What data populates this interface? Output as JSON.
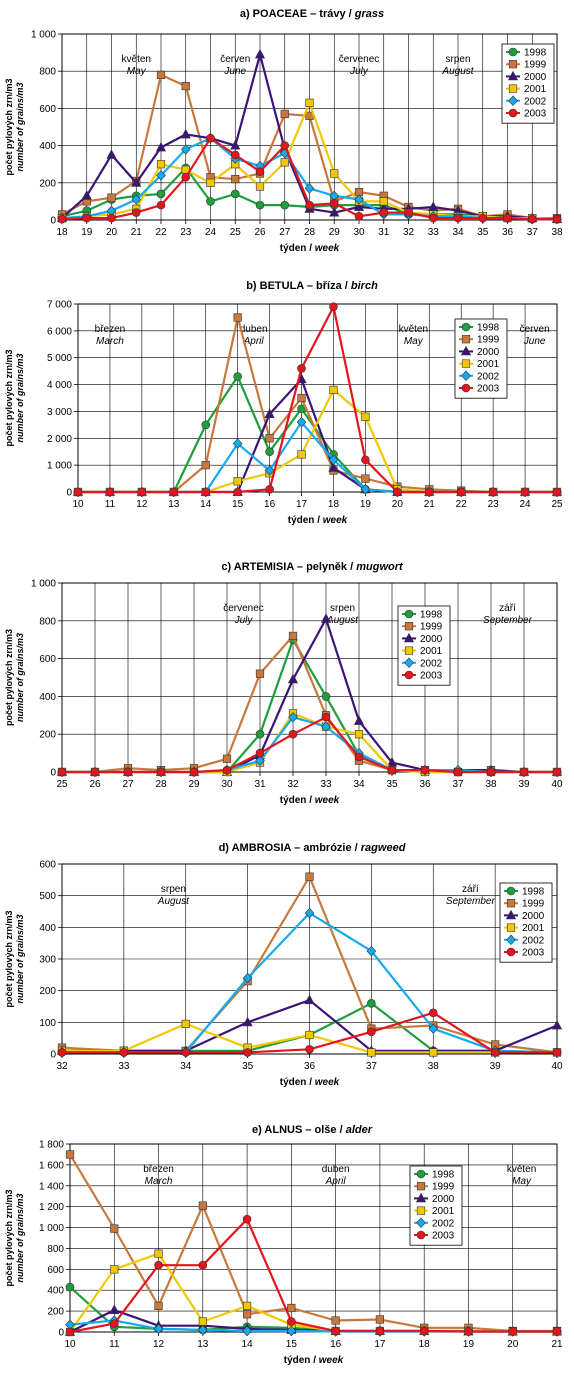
{
  "series_styles": [
    {
      "year": "1998",
      "color": "#1e9e3c",
      "marker": "circle"
    },
    {
      "year": "1999",
      "color": "#c8783c",
      "marker": "square"
    },
    {
      "year": "2000",
      "color": "#3c1478",
      "marker": "triangle"
    },
    {
      "year": "2001",
      "color": "#f0c800",
      "marker": "square"
    },
    {
      "year": "2002",
      "color": "#14aaf0",
      "marker": "diamond"
    },
    {
      "year": "2003",
      "color": "#e6141e",
      "marker": "circle"
    }
  ],
  "chart_data": [
    {
      "type": "line",
      "title": "a) POACEAE – trávy / grass",
      "title_parts": {
        "main": "a) POACEAE – trávy / ",
        "italic": "grass"
      },
      "ylabel": "počet pylových zrn/m3",
      "ylabel_en": "number of grains/m3",
      "xlabel": "týden / week",
      "xlabel_parts": {
        "main": "týden / ",
        "italic": "week"
      },
      "x": [
        18,
        19,
        20,
        21,
        22,
        23,
        24,
        25,
        26,
        27,
        28,
        29,
        30,
        31,
        32,
        33,
        34,
        35,
        36,
        37,
        38
      ],
      "ylim": [
        0,
        1000
      ],
      "yticks": [
        0,
        200,
        400,
        600,
        800,
        1000
      ],
      "ytick_labels": [
        "0",
        "200",
        "400",
        "600",
        "800",
        "1 000"
      ],
      "legend_position": "top-right",
      "annotations": [
        {
          "text": "květen",
          "italic": "May",
          "x": 21
        },
        {
          "text": "červen",
          "italic": "June",
          "x": 25
        },
        {
          "text": "červenec",
          "italic": "July",
          "x": 30
        },
        {
          "text": "srpen",
          "italic": "August",
          "x": 34
        }
      ],
      "series": [
        {
          "name": "1998",
          "values": [
            20,
            50,
            110,
            130,
            140,
            280,
            100,
            140,
            80,
            80,
            70,
            80,
            80,
            80,
            30,
            30,
            30,
            20,
            10,
            10,
            5
          ]
        },
        {
          "name": "1999",
          "values": [
            30,
            100,
            120,
            210,
            780,
            720,
            230,
            220,
            250,
            570,
            560,
            100,
            150,
            130,
            70,
            50,
            60,
            20,
            30,
            10,
            10
          ]
        },
        {
          "name": "2000",
          "values": [
            10,
            130,
            350,
            200,
            390,
            460,
            440,
            400,
            890,
            380,
            60,
            40,
            70,
            60,
            60,
            70,
            50,
            20,
            20,
            10,
            5
          ]
        },
        {
          "name": "2001",
          "values": [
            10,
            20,
            30,
            60,
            300,
            270,
            200,
            300,
            180,
            310,
            630,
            250,
            100,
            100,
            40,
            30,
            20,
            20,
            10,
            10,
            5
          ]
        },
        {
          "name": "2002",
          "values": [
            10,
            20,
            50,
            110,
            240,
            380,
            440,
            330,
            290,
            360,
            170,
            130,
            110,
            30,
            30,
            20,
            20,
            10,
            10,
            5,
            5
          ]
        },
        {
          "name": "2003",
          "values": [
            5,
            10,
            10,
            40,
            80,
            230,
            440,
            350,
            260,
            400,
            80,
            90,
            20,
            40,
            40,
            10,
            10,
            10,
            10,
            5,
            5
          ]
        }
      ]
    },
    {
      "type": "line",
      "title": "b) BETULA – bříza / birch",
      "title_parts": {
        "main": "b) BETULA – bříza / ",
        "italic": "birch"
      },
      "ylabel": "počet pylových zrn/m3",
      "ylabel_en": "number of grains/m3",
      "xlabel": "týden / week",
      "xlabel_parts": {
        "main": "týden / ",
        "italic": "week"
      },
      "x": [
        10,
        11,
        12,
        13,
        14,
        15,
        16,
        17,
        18,
        19,
        20,
        21,
        22,
        23,
        24,
        25
      ],
      "ylim": [
        0,
        7000
      ],
      "yticks": [
        0,
        1000,
        2000,
        3000,
        4000,
        5000,
        6000,
        7000
      ],
      "ytick_labels": [
        "0",
        "1 000",
        "2 000",
        "3 000",
        "4 000",
        "5 000",
        "6 000",
        "7 000"
      ],
      "legend_position": "right",
      "annotations": [
        {
          "text": "březen",
          "italic": "March",
          "x": 11
        },
        {
          "text": "duben",
          "italic": "April",
          "x": 15.5
        },
        {
          "text": "květen",
          "italic": "May",
          "x": 20.5
        },
        {
          "text": "červen",
          "italic": "June",
          "x": 24.3
        }
      ],
      "series": [
        {
          "name": "1998",
          "values": [
            0,
            0,
            0,
            0,
            2500,
            4300,
            1500,
            3100,
            1400,
            100,
            0,
            0,
            0,
            0,
            0,
            0
          ]
        },
        {
          "name": "1999",
          "values": [
            0,
            0,
            0,
            0,
            1000,
            6500,
            2000,
            3500,
            800,
            500,
            200,
            100,
            50,
            0,
            0,
            0
          ]
        },
        {
          "name": "2000",
          "values": [
            0,
            0,
            0,
            0,
            0,
            0,
            2900,
            4200,
            900,
            100,
            0,
            0,
            0,
            0,
            0,
            0
          ]
        },
        {
          "name": "2001",
          "values": [
            0,
            0,
            0,
            0,
            0,
            400,
            700,
            1400,
            3800,
            2800,
            100,
            0,
            0,
            0,
            0,
            0
          ]
        },
        {
          "name": "2002",
          "values": [
            0,
            0,
            0,
            0,
            0,
            1800,
            800,
            2600,
            1200,
            100,
            0,
            0,
            0,
            0,
            0,
            0
          ]
        },
        {
          "name": "2003",
          "values": [
            0,
            0,
            0,
            0,
            0,
            0,
            100,
            4600,
            6900,
            1200,
            0,
            0,
            0,
            0,
            0,
            0
          ]
        }
      ]
    },
    {
      "type": "line",
      "title": "c) ARTEMISIA – pelyněk / mugwort",
      "title_parts": {
        "main": "c) ARTEMISIA – pelyněk / ",
        "italic": "mugwort"
      },
      "ylabel": "počet pylových zrn/m3",
      "ylabel_en": "number of grains/m3",
      "xlabel": "týden / week",
      "xlabel_parts": {
        "main": "týden / ",
        "italic": "week"
      },
      "x": [
        25,
        26,
        27,
        28,
        29,
        30,
        31,
        32,
        33,
        34,
        35,
        36,
        37,
        38,
        39,
        40
      ],
      "ylim": [
        0,
        1000
      ],
      "yticks": [
        0,
        200,
        400,
        600,
        800,
        1000
      ],
      "ytick_labels": [
        "0",
        "200",
        "400",
        "600",
        "800",
        "1 000"
      ],
      "legend_position": "top-center",
      "annotations": [
        {
          "text": "červenec",
          "italic": "July",
          "x": 30.5
        },
        {
          "text": "srpen",
          "italic": "August",
          "x": 33.5
        },
        {
          "text": "září",
          "italic": "September",
          "x": 38.5
        }
      ],
      "series": [
        {
          "name": "1998",
          "values": [
            0,
            0,
            0,
            0,
            0,
            0,
            200,
            700,
            400,
            90,
            10,
            0,
            0,
            0,
            0,
            0
          ]
        },
        {
          "name": "1999",
          "values": [
            0,
            0,
            20,
            10,
            20,
            70,
            520,
            720,
            300,
            60,
            10,
            10,
            0,
            10,
            0,
            0
          ]
        },
        {
          "name": "2000",
          "values": [
            0,
            0,
            0,
            0,
            0,
            0,
            90,
            490,
            810,
            270,
            50,
            10,
            10,
            10,
            0,
            0
          ]
        },
        {
          "name": "2001",
          "values": [
            0,
            0,
            0,
            0,
            0,
            0,
            50,
            310,
            240,
            200,
            10,
            0,
            0,
            0,
            0,
            0
          ]
        },
        {
          "name": "2002",
          "values": [
            0,
            0,
            0,
            0,
            0,
            10,
            60,
            290,
            240,
            100,
            10,
            10,
            10,
            0,
            0,
            0
          ]
        },
        {
          "name": "2003",
          "values": [
            0,
            0,
            0,
            0,
            0,
            10,
            100,
            200,
            290,
            80,
            10,
            10,
            0,
            0,
            0,
            0
          ]
        }
      ]
    },
    {
      "type": "line",
      "title": "d) AMBROSIA – ambrózie / ragweed",
      "title_parts": {
        "main": "d) AMBROSIA – ambrózie / ",
        "italic": "ragweed"
      },
      "ylabel": "počet pylových zrn/m3",
      "ylabel_en": "number of grains/m3",
      "xlabel": "týden / week",
      "xlabel_parts": {
        "main": "týden / ",
        "italic": "week"
      },
      "x": [
        32,
        33,
        34,
        35,
        36,
        37,
        38,
        39,
        40
      ],
      "ylim": [
        0,
        600
      ],
      "yticks": [
        0,
        100,
        200,
        300,
        400,
        500,
        600
      ],
      "ytick_labels": [
        "0",
        "100",
        "200",
        "300",
        "400",
        "500",
        "600"
      ],
      "legend_position": "top-right",
      "annotations": [
        {
          "text": "srpen",
          "italic": "August",
          "x": 33.8
        },
        {
          "text": "září",
          "italic": "September",
          "x": 38.6
        }
      ],
      "series": [
        {
          "name": "1998",
          "values": [
            10,
            10,
            10,
            10,
            60,
            160,
            10,
            10,
            5
          ]
        },
        {
          "name": "1999",
          "values": [
            20,
            10,
            10,
            230,
            560,
            80,
            90,
            30,
            5
          ]
        },
        {
          "name": "2000",
          "values": [
            10,
            10,
            10,
            100,
            170,
            10,
            10,
            10,
            90
          ]
        },
        {
          "name": "2001",
          "values": [
            10,
            10,
            95,
            20,
            60,
            5,
            5,
            5,
            5
          ]
        },
        {
          "name": "2002",
          "values": [
            5,
            5,
            5,
            240,
            445,
            325,
            80,
            10,
            5
          ]
        },
        {
          "name": "2003",
          "values": [
            5,
            5,
            5,
            5,
            15,
            70,
            130,
            5,
            5
          ]
        }
      ]
    },
    {
      "type": "line",
      "title": "e) ALNUS – olše / alder",
      "title_parts": {
        "main": "e) ALNUS – olše / ",
        "italic": "alder"
      },
      "ylabel": "počet pylových zrn/m3",
      "ylabel_en": "number of grains/m3",
      "xlabel": "týden / week",
      "xlabel_parts": {
        "main": "týden / ",
        "italic": "week"
      },
      "x": [
        10,
        11,
        12,
        13,
        14,
        15,
        16,
        17,
        18,
        19,
        20,
        21
      ],
      "ylim": [
        0,
        1800
      ],
      "yticks": [
        0,
        200,
        400,
        600,
        800,
        1000,
        1200,
        1400,
        1600,
        1800
      ],
      "ytick_labels": [
        "0",
        "200",
        "400",
        "600",
        "800",
        "1 000",
        "1 200",
        "1 400",
        "1 600",
        "1 800"
      ],
      "legend_position": "top-center",
      "annotations": [
        {
          "text": "březen",
          "italic": "March",
          "x": 12
        },
        {
          "text": "duben",
          "italic": "April",
          "x": 16
        },
        {
          "text": "květen",
          "italic": "May",
          "x": 20.2
        }
      ],
      "series": [
        {
          "name": "1998",
          "values": [
            430,
            50,
            30,
            20,
            50,
            40,
            10,
            10,
            10,
            10,
            5,
            5
          ]
        },
        {
          "name": "1999",
          "values": [
            1700,
            990,
            250,
            1210,
            170,
            230,
            110,
            120,
            40,
            40,
            10,
            10
          ]
        },
        {
          "name": "2000",
          "values": [
            0,
            210,
            60,
            60,
            30,
            20,
            10,
            10,
            10,
            5,
            5,
            5
          ]
        },
        {
          "name": "2001",
          "values": [
            0,
            600,
            750,
            100,
            250,
            70,
            10,
            10,
            10,
            10,
            5,
            5
          ]
        },
        {
          "name": "2002",
          "values": [
            70,
            110,
            30,
            20,
            10,
            10,
            5,
            5,
            5,
            5,
            5,
            5
          ]
        },
        {
          "name": "2003",
          "values": [
            0,
            80,
            640,
            640,
            1080,
            100,
            10,
            10,
            10,
            5,
            5,
            5
          ]
        }
      ]
    }
  ]
}
